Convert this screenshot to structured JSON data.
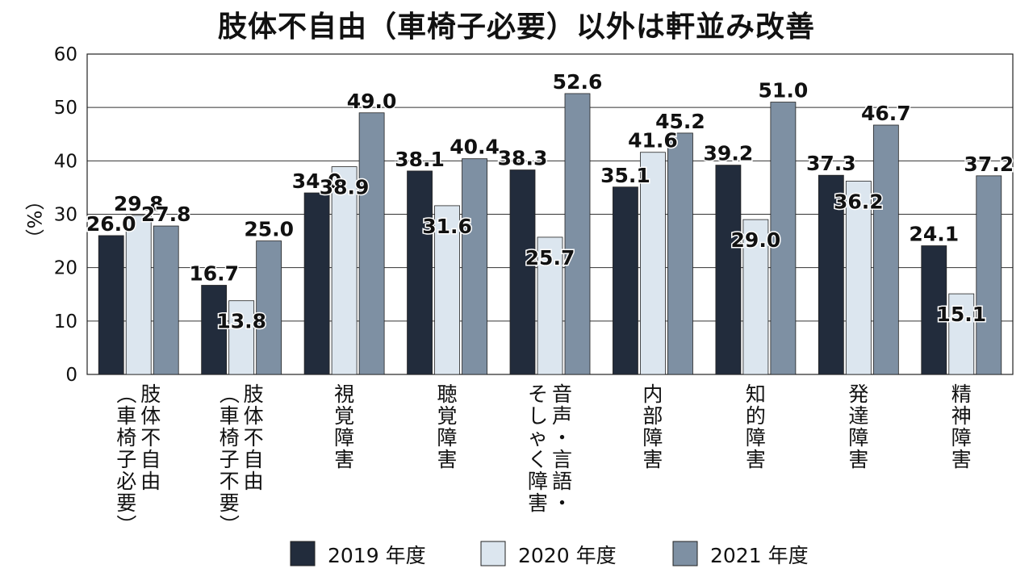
{
  "chart_data": {
    "type": "bar",
    "title": "肢体不自由（車椅子必要）以外は軒並み改善",
    "ylabel": "（%）",
    "ylim": [
      0,
      60
    ],
    "yticks": [
      0,
      10,
      20,
      30,
      40,
      50,
      60
    ],
    "grid": true,
    "legend_position": "bottom",
    "categories": [
      [
        "肢体不自由",
        "（車椅子必要）"
      ],
      [
        "肢体不自由",
        "（車椅子不要）"
      ],
      [
        "視覚障害"
      ],
      [
        "聴覚障害"
      ],
      [
        "音声・言語・",
        "そしゃく障害"
      ],
      [
        "内部障害"
      ],
      [
        "知的障害"
      ],
      [
        "発達障害"
      ],
      [
        "精神障害"
      ]
    ],
    "series": [
      {
        "name": "2019 年度",
        "color": "#222c3c",
        "values": [
          26.0,
          16.7,
          34.0,
          38.1,
          38.3,
          35.1,
          39.2,
          37.3,
          24.1
        ]
      },
      {
        "name": "2020 年度",
        "color": "#dce6ef",
        "values": [
          29.8,
          13.8,
          38.9,
          31.6,
          25.7,
          41.6,
          29.0,
          36.2,
          15.1
        ]
      },
      {
        "name": "2021 年度",
        "color": "#7e90a3",
        "values": [
          27.8,
          25.0,
          49.0,
          40.4,
          52.6,
          45.2,
          51.0,
          46.7,
          37.2
        ]
      }
    ]
  }
}
